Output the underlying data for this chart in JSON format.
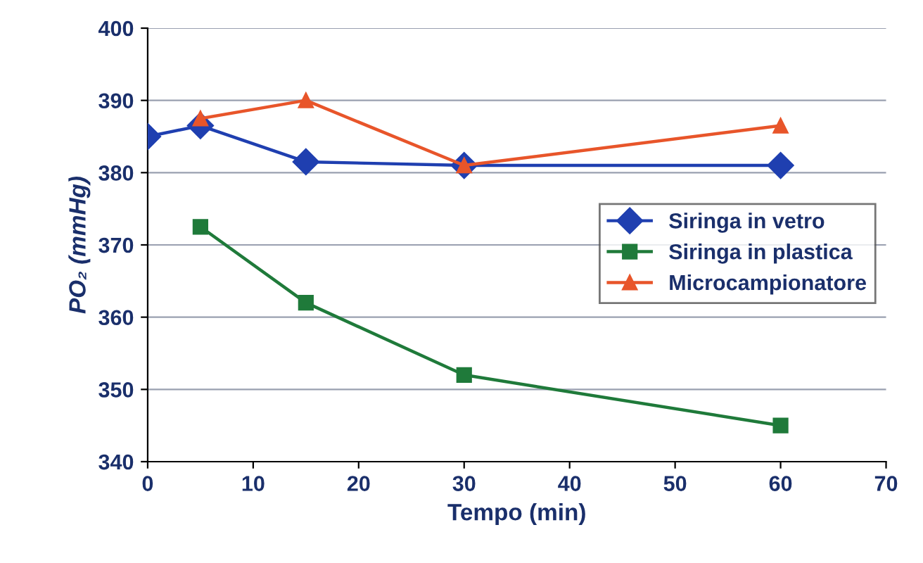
{
  "chart_data": {
    "type": "line",
    "xlabel": "Tempo (min)",
    "ylabel": "PO₂ (mmHg)",
    "xlim": [
      0,
      70
    ],
    "xticks": [
      0,
      10,
      20,
      30,
      40,
      50,
      60,
      70
    ],
    "ylim": [
      340,
      400
    ],
    "yticks": [
      340,
      350,
      360,
      370,
      380,
      390,
      400
    ],
    "grid": "y",
    "legend": "right",
    "line_style": "solid",
    "series": [
      {
        "name": "Siringa in vetro",
        "color": "#1f3fb0",
        "marker": "diamond",
        "x": [
          0,
          5,
          15,
          30,
          60
        ],
        "values": [
          385,
          386.5,
          381.5,
          381,
          381
        ]
      },
      {
        "name": "Siringa in plastica",
        "color": "#1f7a3a",
        "marker": "square",
        "x": [
          5,
          15,
          30,
          60
        ],
        "values": [
          372.5,
          362,
          352,
          345
        ]
      },
      {
        "name": "Microcampionatore",
        "color": "#e8552a",
        "marker": "triangle",
        "x": [
          5,
          15,
          30,
          60
        ],
        "values": [
          387.5,
          390,
          381,
          386.5
        ]
      }
    ]
  }
}
